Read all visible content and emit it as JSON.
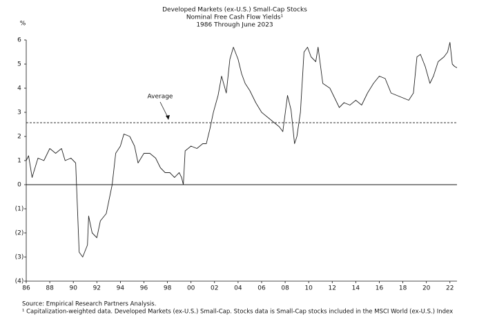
{
  "chart_data": {
    "type": "line",
    "title": [
      "Developed Markets (ex-U.S.) Small-Cap Stocks",
      "Nominal Free Cash Flow Yields¹",
      "1986 Through June 2023"
    ],
    "y_unit_label": "%",
    "annotation": "Average",
    "average": 2.57,
    "source": "Source:  Empirical Research Partners Analysis.",
    "footnote": "¹ Capitalization-weighted data. Developed Markets (ex-U.S.) Small-Cap. Stocks data is Small-Cap stocks included in the MSCI World (ex-U.S.) Index",
    "xlim": [
      1986,
      2022.6
    ],
    "xticks": [
      {
        "value": 1986,
        "label": "86"
      },
      {
        "value": 1988,
        "label": "88"
      },
      {
        "value": 1990,
        "label": "90"
      },
      {
        "value": 1992,
        "label": "92"
      },
      {
        "value": 1994,
        "label": "94"
      },
      {
        "value": 1996,
        "label": "96"
      },
      {
        "value": 1998,
        "label": "98"
      },
      {
        "value": 2000,
        "label": "00"
      },
      {
        "value": 2002,
        "label": "02"
      },
      {
        "value": 2004,
        "label": "04"
      },
      {
        "value": 2006,
        "label": "06"
      },
      {
        "value": 2008,
        "label": "08"
      },
      {
        "value": 2010,
        "label": "10"
      },
      {
        "value": 2012,
        "label": "12"
      },
      {
        "value": 2014,
        "label": "14"
      },
      {
        "value": 2016,
        "label": "16"
      },
      {
        "value": 2018,
        "label": "18"
      },
      {
        "value": 2020,
        "label": "20"
      },
      {
        "value": 2022,
        "label": "22"
      }
    ],
    "ylim": [
      -4,
      6
    ],
    "yticks": [
      6,
      5,
      4,
      3,
      2,
      1,
      0,
      {
        "value": -1,
        "label": "(1)"
      },
      {
        "value": -2,
        "label": "(2)"
      },
      {
        "value": -3,
        "label": "(3)"
      },
      {
        "value": -4,
        "label": "(4)"
      }
    ],
    "color": "#222222",
    "x": [
      1986.0,
      1986.2,
      1986.5,
      1987.0,
      1987.5,
      1988.0,
      1988.5,
      1989.0,
      1989.3,
      1989.8,
      1990.2,
      1990.5,
      1990.8,
      1991.2,
      1991.3,
      1991.6,
      1992.0,
      1992.3,
      1992.8,
      1993.3,
      1993.6,
      1994.0,
      1994.3,
      1994.8,
      1995.2,
      1995.5,
      1996.0,
      1996.5,
      1997.0,
      1997.4,
      1997.8,
      1998.2,
      1998.6,
      1999.0,
      1999.2,
      1999.35,
      1999.5,
      2000.0,
      2000.5,
      2001.0,
      2001.3,
      2001.6,
      2001.9,
      2002.3,
      2002.6,
      2003.0,
      2003.3,
      2003.6,
      2004.0,
      2004.3,
      2004.6,
      2005.0,
      2005.5,
      2006.0,
      2006.5,
      2007.0,
      2007.5,
      2007.8,
      2008.2,
      2008.5,
      2008.8,
      2009.0,
      2009.3,
      2009.6,
      2009.9,
      2010.2,
      2010.6,
      2010.8,
      2011.2,
      2011.8,
      2012.3,
      2012.6,
      2013.0,
      2013.5,
      2014.0,
      2014.5,
      2015.0,
      2015.5,
      2016.0,
      2016.5,
      2017.0,
      2017.5,
      2018.0,
      2018.5,
      2018.9,
      2019.2,
      2019.5,
      2019.9,
      2020.3,
      2020.6,
      2021.0,
      2021.5,
      2021.8,
      2022.0,
      2022.2,
      2022.4,
      2022.6
    ],
    "values": [
      1.0,
      1.2,
      0.3,
      1.1,
      1.0,
      1.5,
      1.3,
      1.5,
      1.0,
      1.1,
      0.9,
      -2.8,
      -3.0,
      -2.5,
      -1.3,
      -2.0,
      -2.2,
      -1.5,
      -1.2,
      0.0,
      1.3,
      1.6,
      2.1,
      2.0,
      1.6,
      0.9,
      1.3,
      1.3,
      1.1,
      0.7,
      0.5,
      0.5,
      0.3,
      0.5,
      0.3,
      0.0,
      1.4,
      1.6,
      1.5,
      1.7,
      1.7,
      2.3,
      3.0,
      3.7,
      4.5,
      3.8,
      5.2,
      5.7,
      5.2,
      4.6,
      4.2,
      3.9,
      3.4,
      3.0,
      2.8,
      2.6,
      2.4,
      2.2,
      3.7,
      3.1,
      1.7,
      2.0,
      3.0,
      5.5,
      5.7,
      5.3,
      5.1,
      5.7,
      4.2,
      4.0,
      3.5,
      3.2,
      3.4,
      3.3,
      3.5,
      3.3,
      3.8,
      4.2,
      4.5,
      4.4,
      3.8,
      3.7,
      3.6,
      3.5,
      3.8,
      5.3,
      5.4,
      4.9,
      4.2,
      4.5,
      5.1,
      5.3,
      5.5,
      5.9,
      5.0,
      4.9,
      4.85
    ]
  }
}
